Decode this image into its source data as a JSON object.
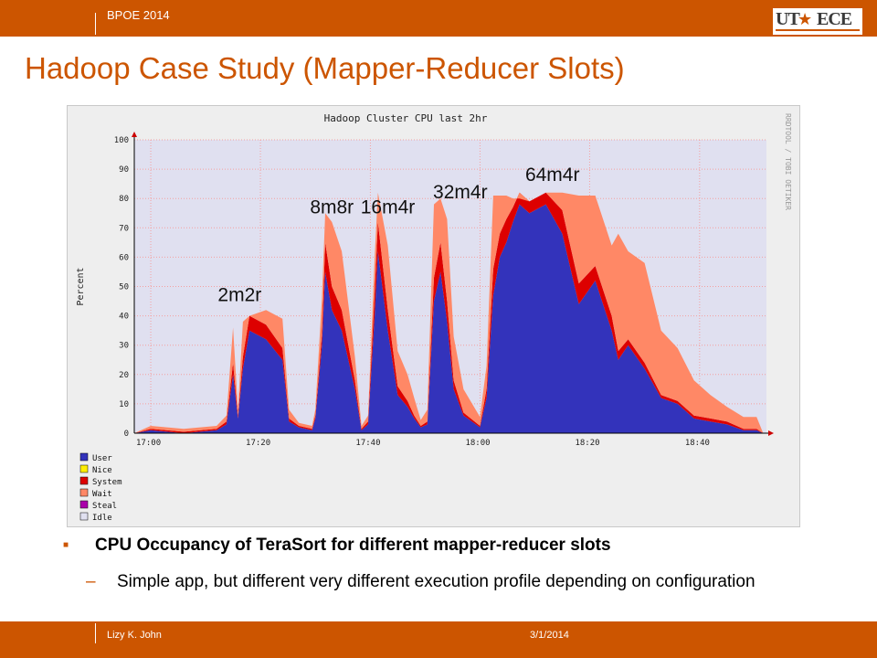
{
  "header": {
    "conference": "BPOE 2014",
    "logo_ut": "UT",
    "logo_ece": "ECE"
  },
  "slide": {
    "title": "Hadoop Case Study (Mapper-Reducer Slots)",
    "bullet": "CPU Occupancy of TeraSort for different mapper-reducer slots",
    "sub_bullet": "Simple app, but different very different execution profile depending on configuration"
  },
  "footer": {
    "author": "Lizy K. John",
    "date": "3/1/2014"
  },
  "colors": {
    "accent": "#cc5500",
    "user": "#3333bb",
    "system": "#dd0000",
    "wait": "#ff8866",
    "idle": "#e0e0f0"
  },
  "chart_data": {
    "type": "area",
    "title": "Hadoop Cluster CPU last 2hr",
    "ylabel": "Percent",
    "side_label": "RRDTOOL / TOBI OETIKER",
    "ylim": [
      0,
      100
    ],
    "yticks": [
      "0",
      "10",
      "20",
      "30",
      "40",
      "50",
      "60",
      "70",
      "80",
      "90",
      "100"
    ],
    "xlim": [
      16.95,
      18.87
    ],
    "xticks": [
      {
        "t": 17.0,
        "label": "17:00"
      },
      {
        "t": 17.333,
        "label": "17:20"
      },
      {
        "t": 17.667,
        "label": "17:40"
      },
      {
        "t": 18.0,
        "label": "18:00"
      },
      {
        "t": 18.333,
        "label": "18:20"
      },
      {
        "t": 18.667,
        "label": "18:40"
      }
    ],
    "legend": [
      {
        "name": "User",
        "color": "#3333bb"
      },
      {
        "name": "Nice",
        "color": "#ffee00"
      },
      {
        "name": "System",
        "color": "#dd0000"
      },
      {
        "name": "Wait",
        "color": "#ff8866"
      },
      {
        "name": "Steal",
        "color": "#aa00aa"
      },
      {
        "name": "Idle",
        "color": "#e0e0f0"
      }
    ],
    "stack_order": [
      "User",
      "System",
      "Wait"
    ],
    "annotations": [
      {
        "label": "2m2r",
        "t": 17.27,
        "y": 45
      },
      {
        "label": "8m8r",
        "t": 17.55,
        "y": 75
      },
      {
        "label": "16m4r",
        "t": 17.72,
        "y": 75
      },
      {
        "label": "32m4r",
        "t": 17.94,
        "y": 80
      },
      {
        "label": "64m4r",
        "t": 18.22,
        "y": 86
      }
    ],
    "x": [
      16.95,
      17.0,
      17.1,
      17.2,
      17.23,
      17.25,
      17.265,
      17.28,
      17.3,
      17.35,
      17.4,
      17.42,
      17.45,
      17.49,
      17.5,
      17.52,
      17.53,
      17.55,
      17.58,
      17.62,
      17.64,
      17.66,
      17.68,
      17.69,
      17.72,
      17.75,
      17.78,
      17.8,
      17.82,
      17.84,
      17.86,
      17.88,
      17.9,
      17.92,
      17.95,
      18.0,
      18.02,
      18.04,
      18.06,
      18.08,
      18.1,
      18.12,
      18.15,
      18.2,
      18.25,
      18.3,
      18.35,
      18.4,
      18.42,
      18.45,
      18.5,
      18.55,
      18.6,
      18.65,
      18.7,
      18.75,
      18.8,
      18.84,
      18.86,
      18.87
    ],
    "series": [
      {
        "name": "User",
        "values": [
          0,
          1,
          0,
          1,
          3,
          20,
          5,
          22,
          35,
          32,
          25,
          4,
          2,
          1,
          5,
          30,
          55,
          42,
          35,
          15,
          1,
          3,
          40,
          62,
          35,
          13,
          9,
          5,
          2,
          3,
          45,
          55,
          38,
          15,
          6,
          2,
          12,
          47,
          60,
          65,
          72,
          78,
          75,
          78,
          68,
          44,
          52,
          35,
          25,
          30,
          22,
          12,
          10,
          5,
          4,
          3,
          1,
          1,
          0,
          0
        ]
      },
      {
        "name": "System",
        "values": [
          0,
          0.5,
          0.5,
          0.5,
          1,
          4,
          1,
          4,
          5,
          5,
          4,
          1,
          0.5,
          0.5,
          1,
          4,
          10,
          8,
          7,
          3,
          0.5,
          1,
          8,
          10,
          7,
          3,
          2,
          1,
          0.5,
          1,
          8,
          10,
          7,
          3,
          1,
          0.5,
          3,
          9,
          8,
          8,
          5,
          4,
          4,
          4,
          8,
          7,
          5,
          5,
          3,
          2,
          2,
          1,
          1,
          1,
          1,
          1,
          0.5,
          0.5,
          0,
          0
        ]
      },
      {
        "name": "Wait",
        "values": [
          0,
          1,
          1,
          1,
          2,
          12,
          2,
          12,
          0,
          5,
          10,
          3,
          1,
          1,
          2,
          12,
          10,
          22,
          20,
          8,
          1,
          2,
          12,
          10,
          22,
          12,
          9,
          6,
          2,
          4,
          25,
          15,
          28,
          15,
          8,
          3,
          8,
          25,
          13,
          8,
          3,
          -2,
          0,
          0,
          6,
          30,
          24,
          24,
          40,
          30,
          34,
          22,
          18,
          12,
          8,
          5,
          4,
          4,
          0,
          0
        ]
      }
    ]
  }
}
